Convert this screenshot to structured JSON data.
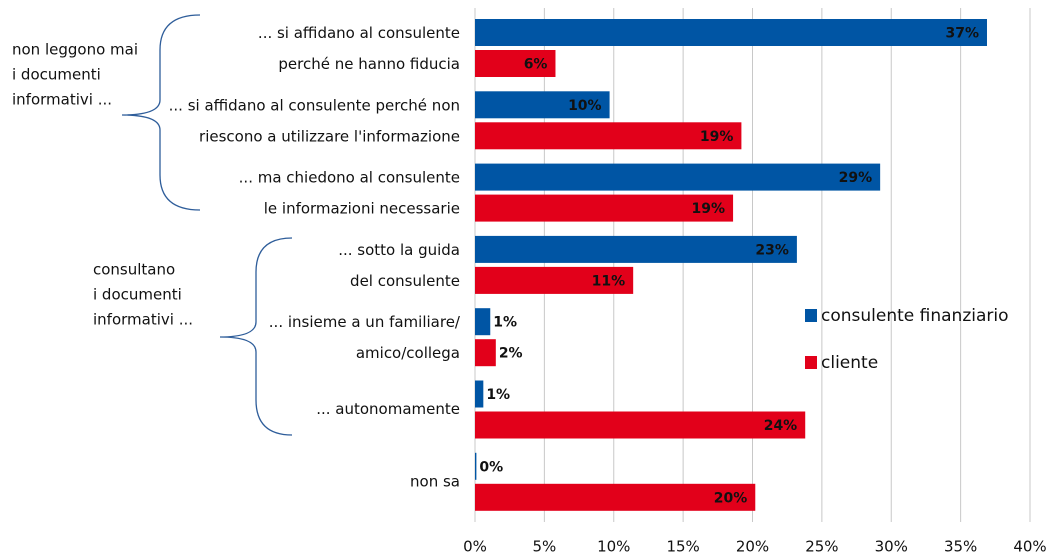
{
  "chart_data": {
    "type": "bar",
    "orientation": "horizontal",
    "categories": [
      [
        "... si affidano al consulente",
        "perché ne hanno fiducia"
      ],
      [
        "... si affidano al consulente perché non",
        "riescono a utilizzare l'informazione"
      ],
      [
        "... ma chiedono al consulente",
        "le informazioni necessarie"
      ],
      [
        "... sotto la guida",
        "del consulente"
      ],
      [
        "... insieme a un familiare/",
        "amico/collega"
      ],
      [
        "... autonomamente"
      ],
      [
        "non sa"
      ]
    ],
    "series": [
      {
        "name": "consulente finanziario",
        "color": "#0055a4",
        "values": [
          36.9,
          9.7,
          29.2,
          23.2,
          1.1,
          0.6,
          0.1
        ],
        "value_labels": [
          "37%",
          "10%",
          "29%",
          "23%",
          "1%",
          "1%",
          "0%"
        ]
      },
      {
        "name": "cliente",
        "color": "#e2001a",
        "values": [
          5.8,
          19.2,
          18.6,
          11.4,
          1.5,
          23.8,
          20.2
        ],
        "value_labels": [
          "6%",
          "19%",
          "19%",
          "11%",
          "2%",
          "24%",
          "20%"
        ]
      }
    ],
    "annotations": [
      [
        "non leggono mai",
        "i documenti",
        "informativi ..."
      ],
      [
        "consultano",
        "i documenti",
        "informativi ..."
      ]
    ],
    "xlim": [
      0,
      40
    ],
    "xticks": [
      {
        "value": 0,
        "label": "0%"
      },
      {
        "value": 5,
        "label": "5%"
      },
      {
        "value": 10,
        "label": "10%"
      },
      {
        "value": 15,
        "label": "15%"
      },
      {
        "value": 20,
        "label": "20%"
      },
      {
        "value": 25,
        "label": "25%"
      },
      {
        "value": 30,
        "label": "30%"
      },
      {
        "value": 35,
        "label": "35%"
      },
      {
        "value": 40,
        "label": "40%"
      }
    ],
    "grid": true,
    "legend": "right"
  }
}
